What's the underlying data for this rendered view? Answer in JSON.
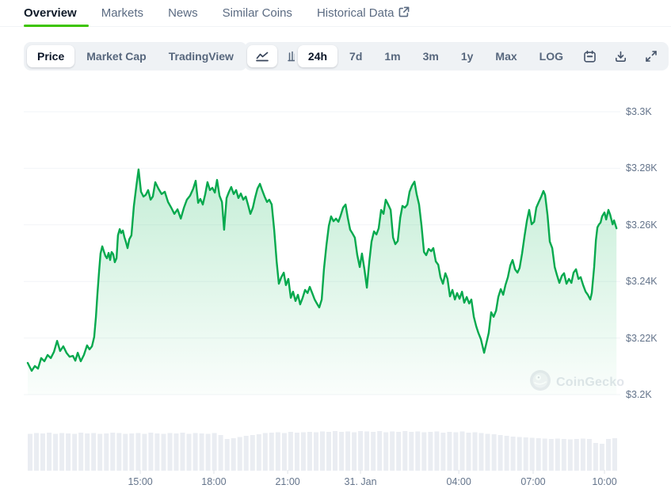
{
  "tabs": {
    "items": [
      {
        "label": "Overview",
        "active": true
      },
      {
        "label": "Markets",
        "active": false
      },
      {
        "label": "News",
        "active": false
      },
      {
        "label": "Similar Coins",
        "active": false
      },
      {
        "label": "Historical Data",
        "active": false,
        "icon": "external-link-icon"
      }
    ],
    "accent_color": "#3dc400"
  },
  "toolbar": {
    "metric": {
      "options": [
        "Price",
        "Market Cap",
        "TradingView"
      ],
      "active": "Price"
    },
    "chart_type": {
      "options": [
        "line-chart-icon",
        "candlestick-chart-icon"
      ],
      "active": "line-chart-icon"
    },
    "range": {
      "options": [
        "24h",
        "7d",
        "1m",
        "3m",
        "1y",
        "Max",
        "LOG"
      ],
      "active": "24h"
    },
    "action_icons": [
      "calendar-icon",
      "download-icon",
      "fullscreen-icon"
    ]
  },
  "chart_data": {
    "type": "area",
    "title": "24h price chart",
    "currency": "USD",
    "line_color": "#07a94e",
    "fill_color": "#10b959",
    "grid_color": "#f2f4f7",
    "volume_color": "#eaedf2",
    "watermark": "CoinGecko",
    "xlim": [
      0,
      24.1
    ],
    "ylim": [
      3200,
      3300
    ],
    "y_ticks": [
      {
        "value": 3300,
        "label": "$3.3K"
      },
      {
        "value": 3280,
        "label": "$3.28K"
      },
      {
        "value": 3260,
        "label": "$3.26K"
      },
      {
        "value": 3240,
        "label": "$3.24K"
      },
      {
        "value": 3220,
        "label": "$3.22K"
      },
      {
        "value": 3200,
        "label": "$3.2K"
      }
    ],
    "x_ticks": [
      {
        "t": 4.59,
        "label": "15:00"
      },
      {
        "t": 7.59,
        "label": "18:00"
      },
      {
        "t": 10.6,
        "label": "21:00"
      },
      {
        "t": 13.57,
        "label": "31. Jan"
      },
      {
        "t": 17.58,
        "label": "04:00"
      },
      {
        "t": 20.61,
        "label": "07:00"
      },
      {
        "t": 23.52,
        "label": "10:00"
      }
    ],
    "points": [
      [
        0,
        3211.2
      ],
      [
        0.16,
        3208.4
      ],
      [
        0.29,
        3210.1
      ],
      [
        0.42,
        3209.2
      ],
      [
        0.55,
        3212.9
      ],
      [
        0.68,
        3211.8
      ],
      [
        0.81,
        3214
      ],
      [
        0.94,
        3212.9
      ],
      [
        1.07,
        3215.1
      ],
      [
        1.2,
        3219
      ],
      [
        1.32,
        3215.4
      ],
      [
        1.45,
        3217.1
      ],
      [
        1.58,
        3214.8
      ],
      [
        1.71,
        3213.4
      ],
      [
        1.84,
        3213.7
      ],
      [
        1.94,
        3212
      ],
      [
        2.04,
        3214.8
      ],
      [
        2.16,
        3211.8
      ],
      [
        2.29,
        3214
      ],
      [
        2.42,
        3217.4
      ],
      [
        2.52,
        3216
      ],
      [
        2.62,
        3217.1
      ],
      [
        2.71,
        3220.4
      ],
      [
        2.78,
        3227.5
      ],
      [
        2.84,
        3235.3
      ],
      [
        2.91,
        3243.7
      ],
      [
        2.97,
        3249.9
      ],
      [
        3.04,
        3252.4
      ],
      [
        3.1,
        3250.7
      ],
      [
        3.17,
        3249
      ],
      [
        3.23,
        3248.2
      ],
      [
        3.3,
        3250.1
      ],
      [
        3.36,
        3247.6
      ],
      [
        3.42,
        3250.4
      ],
      [
        3.49,
        3249.6
      ],
      [
        3.55,
        3246.8
      ],
      [
        3.62,
        3248.2
      ],
      [
        3.68,
        3256.3
      ],
      [
        3.75,
        3258.5
      ],
      [
        3.81,
        3257.1
      ],
      [
        3.88,
        3258
      ],
      [
        3.94,
        3255.7
      ],
      [
        4.01,
        3253.8
      ],
      [
        4.07,
        3251.8
      ],
      [
        4.14,
        3254.9
      ],
      [
        4.23,
        3256.3
      ],
      [
        4.33,
        3266.7
      ],
      [
        4.43,
        3273.7
      ],
      [
        4.52,
        3279.6
      ],
      [
        4.62,
        3271.7
      ],
      [
        4.72,
        3270
      ],
      [
        4.81,
        3270.6
      ],
      [
        4.91,
        3272.3
      ],
      [
        5.01,
        3268.9
      ],
      [
        5.1,
        3270
      ],
      [
        5.2,
        3275.1
      ],
      [
        5.33,
        3272.8
      ],
      [
        5.46,
        3270.9
      ],
      [
        5.59,
        3271.7
      ],
      [
        5.72,
        3268.1
      ],
      [
        5.85,
        3266.1
      ],
      [
        5.98,
        3263.9
      ],
      [
        6.11,
        3265.5
      ],
      [
        6.24,
        3262.2
      ],
      [
        6.37,
        3266.1
      ],
      [
        6.49,
        3268.9
      ],
      [
        6.62,
        3270.3
      ],
      [
        6.75,
        3272.8
      ],
      [
        6.85,
        3275.6
      ],
      [
        6.95,
        3267.8
      ],
      [
        7.04,
        3269.2
      ],
      [
        7.14,
        3267.2
      ],
      [
        7.24,
        3270.9
      ],
      [
        7.33,
        3275.1
      ],
      [
        7.43,
        3272.3
      ],
      [
        7.53,
        3273.1
      ],
      [
        7.63,
        3271.4
      ],
      [
        7.72,
        3275.9
      ],
      [
        7.82,
        3270.3
      ],
      [
        7.92,
        3268.1
      ],
      [
        8.01,
        3258.3
      ],
      [
        8.11,
        3269.5
      ],
      [
        8.21,
        3271.7
      ],
      [
        8.3,
        3273.4
      ],
      [
        8.4,
        3270.9
      ],
      [
        8.5,
        3272.3
      ],
      [
        8.59,
        3269.5
      ],
      [
        8.69,
        3271.1
      ],
      [
        8.79,
        3268.9
      ],
      [
        8.89,
        3270
      ],
      [
        8.98,
        3267.2
      ],
      [
        9.08,
        3263.9
      ],
      [
        9.18,
        3266.1
      ],
      [
        9.27,
        3269.5
      ],
      [
        9.37,
        3272.8
      ],
      [
        9.47,
        3274.5
      ],
      [
        9.56,
        3272.3
      ],
      [
        9.66,
        3270
      ],
      [
        9.76,
        3268.1
      ],
      [
        9.85,
        3268.9
      ],
      [
        9.95,
        3267.2
      ],
      [
        10.05,
        3258.3
      ],
      [
        10.15,
        3247.1
      ],
      [
        10.24,
        3239.2
      ],
      [
        10.34,
        3241.5
      ],
      [
        10.44,
        3243.1
      ],
      [
        10.53,
        3238.7
      ],
      [
        10.63,
        3240.9
      ],
      [
        10.73,
        3234.2
      ],
      [
        10.82,
        3236.4
      ],
      [
        10.92,
        3233.1
      ],
      [
        11.02,
        3235.3
      ],
      [
        11.11,
        3231.9
      ],
      [
        11.21,
        3234.2
      ],
      [
        11.31,
        3237
      ],
      [
        11.41,
        3235.9
      ],
      [
        11.5,
        3238.1
      ],
      [
        11.6,
        3235.9
      ],
      [
        11.7,
        3233.6
      ],
      [
        11.79,
        3232.2
      ],
      [
        11.89,
        3230.8
      ],
      [
        11.99,
        3233.6
      ],
      [
        12.08,
        3244.3
      ],
      [
        12.18,
        3252.7
      ],
      [
        12.28,
        3259.7
      ],
      [
        12.37,
        3263
      ],
      [
        12.47,
        3261.3
      ],
      [
        12.57,
        3262.2
      ],
      [
        12.67,
        3261.1
      ],
      [
        12.76,
        3263.3
      ],
      [
        12.86,
        3266.1
      ],
      [
        12.96,
        3267.2
      ],
      [
        13.05,
        3262.5
      ],
      [
        13.15,
        3258.3
      ],
      [
        13.25,
        3256.9
      ],
      [
        13.34,
        3255.5
      ],
      [
        13.44,
        3249.3
      ],
      [
        13.54,
        3245.1
      ],
      [
        13.63,
        3249.9
      ],
      [
        13.73,
        3244.3
      ],
      [
        13.83,
        3237.8
      ],
      [
        13.93,
        3247.1
      ],
      [
        14.02,
        3254.1
      ],
      [
        14.12,
        3257.7
      ],
      [
        14.22,
        3256.6
      ],
      [
        14.31,
        3258.8
      ],
      [
        14.41,
        3265.3
      ],
      [
        14.51,
        3263.9
      ],
      [
        14.6,
        3268.9
      ],
      [
        14.7,
        3267.2
      ],
      [
        14.8,
        3265.3
      ],
      [
        14.9,
        3255.5
      ],
      [
        14.99,
        3253.2
      ],
      [
        15.09,
        3254.3
      ],
      [
        15.19,
        3262.5
      ],
      [
        15.28,
        3266.7
      ],
      [
        15.38,
        3266.1
      ],
      [
        15.48,
        3267.2
      ],
      [
        15.57,
        3271.7
      ],
      [
        15.67,
        3273.9
      ],
      [
        15.77,
        3275.3
      ],
      [
        15.86,
        3270.9
      ],
      [
        15.96,
        3267.2
      ],
      [
        16.06,
        3259.7
      ],
      [
        16.16,
        3250.4
      ],
      [
        16.25,
        3249.3
      ],
      [
        16.35,
        3251.5
      ],
      [
        16.45,
        3250.7
      ],
      [
        16.54,
        3251.8
      ],
      [
        16.64,
        3247.1
      ],
      [
        16.74,
        3245.9
      ],
      [
        16.83,
        3241.5
      ],
      [
        16.93,
        3239.2
      ],
      [
        17.03,
        3242.9
      ],
      [
        17.12,
        3240.9
      ],
      [
        17.22,
        3234.7
      ],
      [
        17.32,
        3237
      ],
      [
        17.42,
        3233.6
      ],
      [
        17.51,
        3235.9
      ],
      [
        17.61,
        3233.9
      ],
      [
        17.71,
        3236.4
      ],
      [
        17.8,
        3232.5
      ],
      [
        17.9,
        3234.5
      ],
      [
        18,
        3232.2
      ],
      [
        18.09,
        3233.6
      ],
      [
        18.19,
        3227.5
      ],
      [
        18.29,
        3224.1
      ],
      [
        18.38,
        3221.8
      ],
      [
        18.48,
        3219.6
      ],
      [
        18.61,
        3214.8
      ],
      [
        18.71,
        3218.5
      ],
      [
        18.8,
        3221.8
      ],
      [
        18.9,
        3229.1
      ],
      [
        19,
        3227.5
      ],
      [
        19.1,
        3229.7
      ],
      [
        19.19,
        3234.5
      ],
      [
        19.29,
        3237.3
      ],
      [
        19.39,
        3235.3
      ],
      [
        19.48,
        3238.7
      ],
      [
        19.58,
        3241.5
      ],
      [
        19.68,
        3245.7
      ],
      [
        19.77,
        3247.6
      ],
      [
        19.87,
        3244.3
      ],
      [
        19.97,
        3243.1
      ],
      [
        20.06,
        3244.8
      ],
      [
        20.16,
        3249.9
      ],
      [
        20.26,
        3256
      ],
      [
        20.36,
        3261.6
      ],
      [
        20.45,
        3265.3
      ],
      [
        20.55,
        3260.2
      ],
      [
        20.65,
        3261.1
      ],
      [
        20.74,
        3266.1
      ],
      [
        20.84,
        3268.1
      ],
      [
        20.94,
        3270
      ],
      [
        21.03,
        3272
      ],
      [
        21.1,
        3270.6
      ],
      [
        21.2,
        3263.3
      ],
      [
        21.29,
        3254.1
      ],
      [
        21.39,
        3251.8
      ],
      [
        21.49,
        3245.1
      ],
      [
        21.58,
        3242.3
      ],
      [
        21.68,
        3239.5
      ],
      [
        21.78,
        3242
      ],
      [
        21.87,
        3242.9
      ],
      [
        21.97,
        3239.2
      ],
      [
        22.07,
        3240.9
      ],
      [
        22.17,
        3239.5
      ],
      [
        22.26,
        3243.1
      ],
      [
        22.36,
        3244.3
      ],
      [
        22.46,
        3240.9
      ],
      [
        22.55,
        3241.5
      ],
      [
        22.65,
        3238.7
      ],
      [
        22.75,
        3236.4
      ],
      [
        22.84,
        3235.3
      ],
      [
        22.94,
        3233.6
      ],
      [
        23,
        3235.9
      ],
      [
        23.1,
        3245.1
      ],
      [
        23.17,
        3254.6
      ],
      [
        23.23,
        3259.1
      ],
      [
        23.3,
        3260.2
      ],
      [
        23.36,
        3260.8
      ],
      [
        23.42,
        3263
      ],
      [
        23.52,
        3264.4
      ],
      [
        23.59,
        3261.9
      ],
      [
        23.68,
        3265.3
      ],
      [
        23.75,
        3263.6
      ],
      [
        23.85,
        3260.2
      ],
      [
        23.91,
        3261.6
      ],
      [
        24.01,
        3258.8
      ]
    ],
    "volume_bars": [
      0.93,
      0.95,
      0.94,
      0.96,
      0.93,
      0.95,
      0.94,
      0.93,
      0.96,
      0.94,
      0.95,
      0.93,
      0.94,
      0.96,
      0.95,
      0.93,
      0.94,
      0.95,
      0.93,
      0.96,
      0.94,
      0.93,
      0.95,
      0.94,
      0.96,
      0.93,
      0.95,
      0.94,
      0.93,
      0.95,
      0.9,
      0.8,
      0.82,
      0.85,
      0.88,
      0.9,
      0.92,
      0.95,
      0.96,
      0.97,
      0.95,
      0.98,
      0.96,
      0.97,
      0.98,
      0.97,
      0.99,
      0.98,
      1,
      0.98,
      0.99,
      0.97,
      1,
      0.99,
      0.98,
      1,
      0.97,
      0.99,
      0.98,
      1,
      0.98,
      0.99,
      0.97,
      0.98,
      0.99,
      0.96,
      0.98,
      0.97,
      0.99,
      0.96,
      0.97,
      0.95,
      0.93,
      0.92,
      0.9,
      0.88,
      0.86,
      0.85,
      0.84,
      0.83,
      0.82,
      0.81,
      0.8,
      0.81,
      0.8,
      0.79,
      0.8,
      0.81,
      0.8,
      0.7,
      0.68,
      0.8,
      0.82
    ]
  }
}
